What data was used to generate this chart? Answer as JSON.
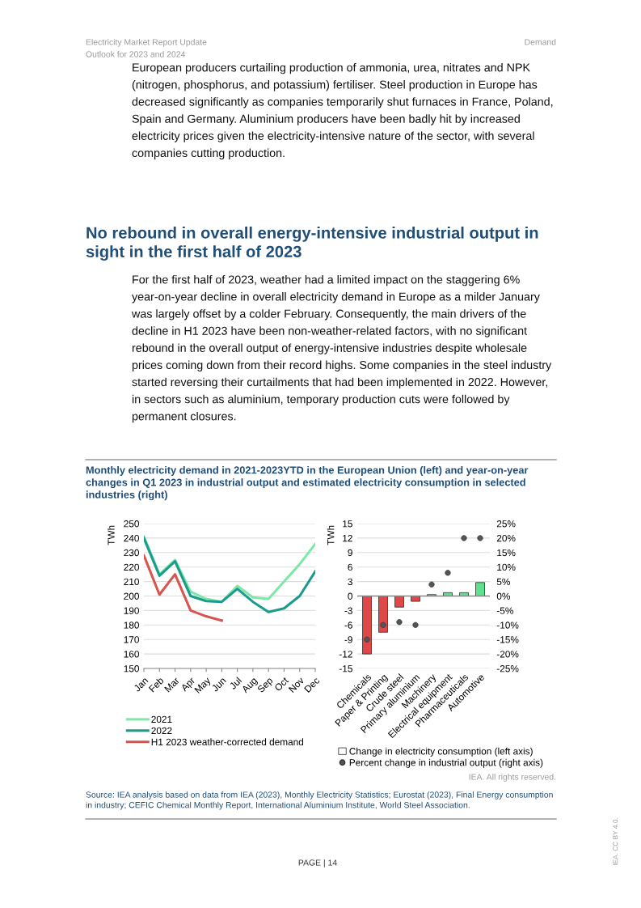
{
  "chart_data": [
    {
      "type": "other",
      "title": "Monthly electricity demand in 2021-2023YTD in the European Union (left) and year-on-year changes in Q1 2023 in industrial output and estimated electricity consumption in selected industries (right)",
      "annotations": [
        "Electricity Market Report Update",
        "Outlook for 2023 and 2024",
        "Demand",
        "European producers curtailing production of ammonia, urea, nitrates and NPK (nitrogen, phosphorus, and potassium) fertiliser. Steel production in Europe has decreased significantly as companies temporarily shut furnaces in France, Poland, Spain and Germany. Aluminium producers have been badly hit by increased electricity prices given the electricity-intensive nature of the sector, with several companies cutting production.",
        "No rebound in overall energy-intensive industrial output in sight in the first half of 2023",
        "For the first half of 2023, weather had a limited impact on the staggering 6% year-on-year decline in overall electricity demand in Europe as a milder January was largely offset by a colder February. Consequently, the main drivers of the decline in H1 2023 have been non-weather-related factors, with no significant rebound in the overall output of energy-intensive industries despite wholesale prices coming down from their record highs. Some companies in the steel industry started reversing their curtailments that had been implemented in 2022. However, in sectors such as aluminium, temporary production cuts were followed by permanent closures.",
        "Source: IEA analysis based on data from IEA (2023), Monthly Electricity Statistics; Eurostat (2023), Final Energy consumption in industry; CEFIC Chemical Monthly Report, International Aluminium Institute, World Steel Association.",
        "IEA. All rights reserved.",
        "PAGE | 14",
        "IEA. CC BY 4.0."
      ]
    },
    {
      "type": "line",
      "ylabel": "TWh",
      "categories": [
        "Jan",
        "Feb",
        "Mar",
        "Apr",
        "May",
        "Jun",
        "Jul",
        "Aug",
        "Sep",
        "Oct",
        "Nov",
        "Dec"
      ],
      "ylim": [
        150,
        250
      ],
      "yticks": [
        150,
        160,
        170,
        180,
        190,
        200,
        210,
        220,
        230,
        240,
        250
      ],
      "grid": "y",
      "legend": "bottom",
      "series": [
        {
          "name": "2021",
          "color": "#7ee8a8",
          "values": [
            241,
            215,
            225,
            203,
            198,
            196,
            207,
            199,
            198,
            210,
            222,
            236
          ]
        },
        {
          "name": "2022",
          "color": "#1a9b8c",
          "values": [
            240,
            214,
            224,
            200,
            196.5,
            196,
            205,
            196,
            189,
            191.5,
            200,
            217
          ]
        },
        {
          "name": "H1 2023 weather-corrected demand",
          "color": "#d9534f",
          "values": [
            228,
            201,
            215,
            190,
            186,
            183,
            null,
            null,
            null,
            null,
            null,
            null
          ]
        }
      ]
    },
    {
      "type": "bar",
      "ylabel": "TWh",
      "categories": [
        "Chemicals",
        "Paper & Printing",
        "Crude steel",
        "Primary aluminium",
        "Machinery",
        "Electrical equipment",
        "Pharmaceuticals",
        "Automotive"
      ],
      "ylim": [
        -15,
        15
      ],
      "yticks": [
        -15,
        -12,
        -9,
        -6,
        -3,
        0,
        3,
        6,
        9,
        12,
        15
      ],
      "y2lim": [
        -25,
        25
      ],
      "y2ticks": [
        {
          "value": -25,
          "label": "-25%"
        },
        {
          "value": -20,
          "label": "-20%"
        },
        {
          "value": -15,
          "label": "-15%"
        },
        {
          "value": -10,
          "label": "-10%"
        },
        {
          "value": -5,
          "label": "-5%"
        },
        {
          "value": 0,
          "label": "0%"
        },
        {
          "value": 5,
          "label": "5%"
        },
        {
          "value": 10,
          "label": "10%"
        },
        {
          "value": 15,
          "label": "15%"
        },
        {
          "value": 20,
          "label": "20%"
        },
        {
          "value": 25,
          "label": "25%"
        }
      ],
      "grid": "y",
      "legend": "bottom",
      "series": [
        {
          "name": "Change in electricity consumption (left axis)",
          "type": "bar",
          "color": "#ffffff",
          "colors": [
            "#e04848",
            "#e04848",
            "#e04848",
            "#e04848",
            "#5ee08f",
            "#5ee08f",
            "#5ee08f",
            "#5ee08f"
          ],
          "values": [
            -12,
            -7.5,
            -2.3,
            -1.1,
            0.3,
            0.7,
            0.7,
            2.8
          ]
        },
        {
          "name": "Percent change in industrial output (right axis)",
          "type": "scatter",
          "axis": "y2",
          "color": "#555555",
          "values": [
            -15,
            -10,
            -9,
            -10,
            4,
            8,
            20,
            20
          ]
        }
      ]
    }
  ]
}
